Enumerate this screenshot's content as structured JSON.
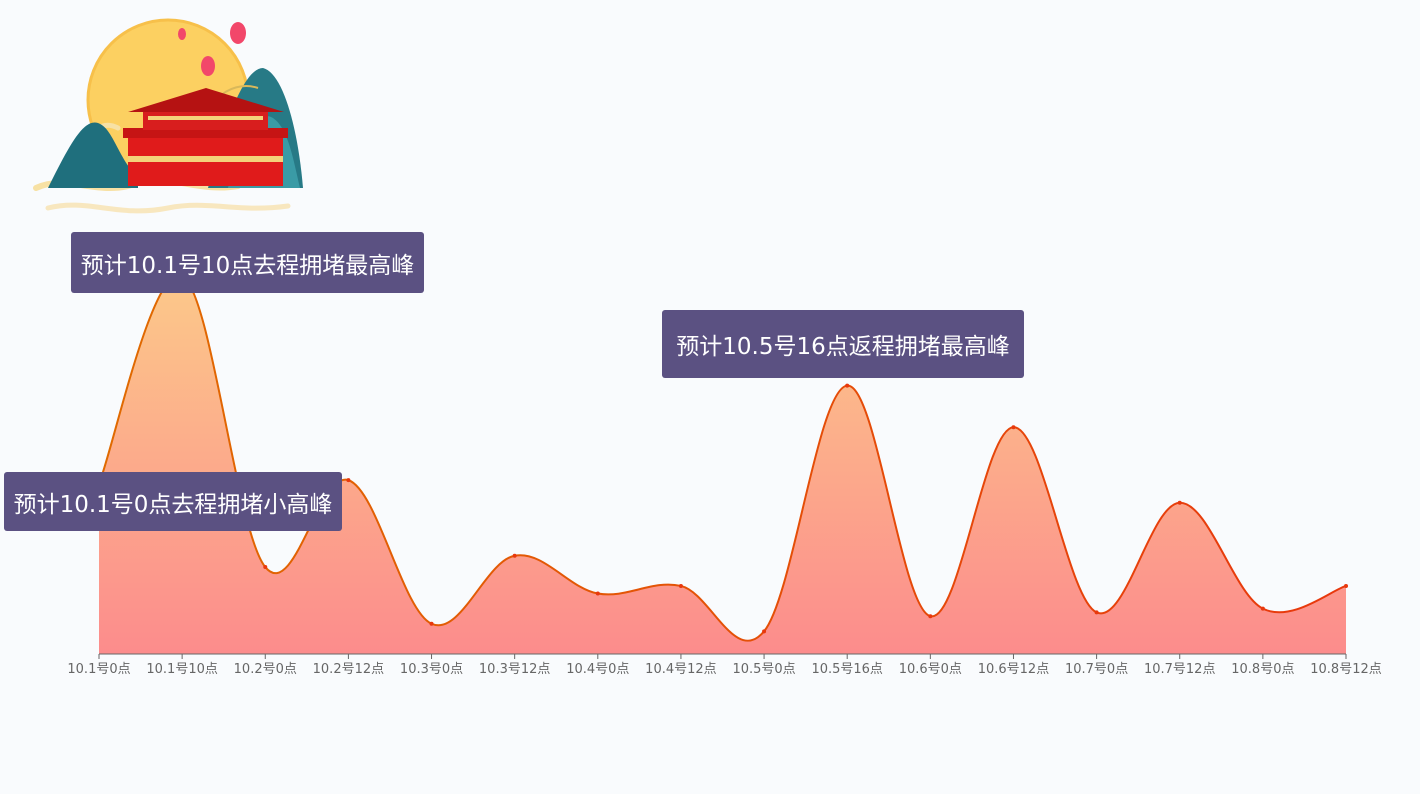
{
  "colors": {
    "background": "#f9fbfd",
    "line_start": "#e06a00",
    "line_end": "#e8380d",
    "area_top": "#fcc98a",
    "area_bottom": "#fc8c8c",
    "callout_bg": "#5b5182",
    "axis": "#666666",
    "tick_text": "#666666"
  },
  "decoration": {
    "icon": "national-day-tiananmen-moon-lanterns-icon"
  },
  "chart_data": {
    "type": "area",
    "smooth": true,
    "categories": [
      "10.1号0点",
      "10.1号10点",
      "10.2号0点",
      "10.2号12点",
      "10.3号0点",
      "10.3号12点",
      "10.4号0点",
      "10.4号12点",
      "10.5号0点",
      "10.5号16点",
      "10.6号0点",
      "10.6号12点",
      "10.7号0点",
      "10.7号12点",
      "10.8号0点",
      "10.8号12点"
    ],
    "values": [
      45,
      100,
      23,
      46,
      8,
      26,
      16,
      18,
      6,
      71,
      10,
      60,
      11,
      40,
      12,
      18
    ],
    "ylim": [
      0,
      100
    ],
    "show_y_axis": false,
    "grid": false,
    "annotations": [
      {
        "category_index": 1,
        "text": "预计10.1号10点去程拥堵最高峰"
      },
      {
        "category_index": 9,
        "text": "预计10.5号16点返程拥堵最高峰"
      },
      {
        "category_index": 0,
        "text": "预计10.1号0点去程拥堵小高峰"
      }
    ]
  }
}
